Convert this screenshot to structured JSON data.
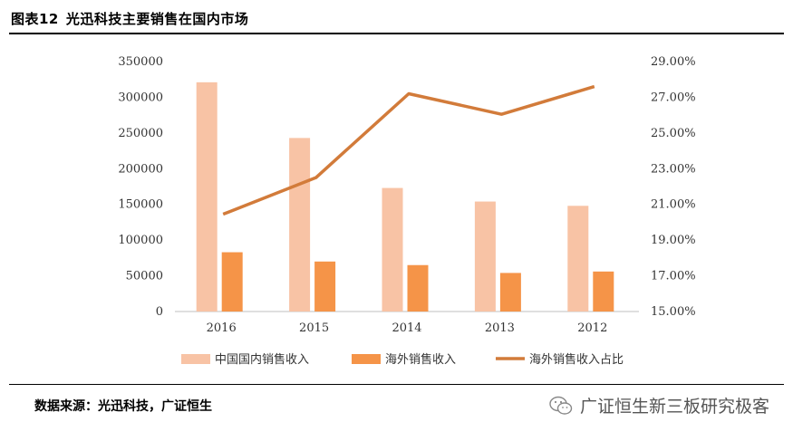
{
  "header": {
    "figure_no": "图表12",
    "title": "光迅科技主要销售在国内市场"
  },
  "footer": {
    "source": "数据来源：光迅科技，广证恒生",
    "watermark": "广证恒生新三板研究极客"
  },
  "colors": {
    "domestic": "#F8C3A5",
    "overseas": "#F59448",
    "ratio": "#D27B3A"
  },
  "chart_data": {
    "type": "bar",
    "categories": [
      "2016",
      "2015",
      "2014",
      "2013",
      "2012"
    ],
    "series": [
      {
        "name": "中国国内销售收入",
        "kind": "bar",
        "axis": "left",
        "values": [
          321000,
          243000,
          173000,
          154000,
          148000
        ]
      },
      {
        "name": "海外销售收入",
        "kind": "bar",
        "axis": "left",
        "values": [
          83000,
          70000,
          65000,
          54000,
          56000
        ]
      },
      {
        "name": "海外销售收入占比",
        "kind": "line",
        "axis": "right",
        "values": [
          0.2045,
          0.225,
          0.272,
          0.2605,
          0.276
        ]
      }
    ],
    "y_left": {
      "min": 0,
      "max": 350000,
      "ticks": [
        "0",
        "50000",
        "100000",
        "150000",
        "200000",
        "250000",
        "300000",
        "350000"
      ]
    },
    "y_right": {
      "min": 0.15,
      "max": 0.29,
      "ticks": [
        "15.00%",
        "17.00%",
        "19.00%",
        "21.00%",
        "23.00%",
        "25.00%",
        "27.00%",
        "29.00%"
      ]
    },
    "grid": false,
    "legend_position": "bottom"
  }
}
